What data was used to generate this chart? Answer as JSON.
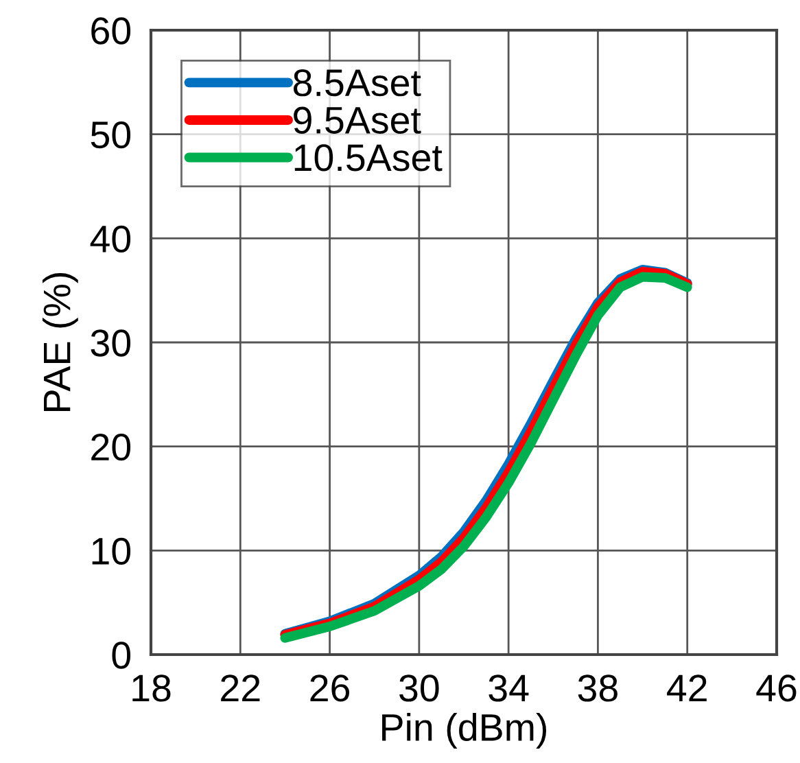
{
  "chart_data": {
    "type": "line",
    "xlabel": "Pin (dBm)",
    "ylabel": "PAE (%)",
    "x": [
      24,
      26,
      28,
      30,
      31,
      32,
      33,
      34,
      35,
      36,
      37,
      38,
      39,
      40,
      41,
      42
    ],
    "series": [
      {
        "name": "8.5Aset",
        "color": "#0070c0",
        "values": [
          2.0,
          3.2,
          4.9,
          7.6,
          9.4,
          11.8,
          14.8,
          18.3,
          22.2,
          26.3,
          30.3,
          33.8,
          36.1,
          37.0,
          36.7,
          35.7
        ]
      },
      {
        "name": "9.5Aset",
        "color": "#ff0000",
        "values": [
          1.9,
          3.0,
          4.6,
          7.2,
          8.9,
          11.2,
          14.1,
          17.5,
          21.4,
          25.6,
          29.7,
          33.4,
          35.8,
          36.8,
          36.6,
          35.6
        ]
      },
      {
        "name": "10.5Aset",
        "color": "#00b050",
        "values": [
          1.6,
          2.7,
          4.2,
          6.6,
          8.2,
          10.4,
          13.2,
          16.5,
          20.3,
          24.5,
          28.7,
          32.6,
          35.3,
          36.3,
          36.2,
          35.3
        ]
      }
    ],
    "xlim": [
      18,
      46
    ],
    "xticks": [
      18,
      22,
      26,
      30,
      34,
      38,
      42,
      46
    ],
    "ylim": [
      0,
      60
    ],
    "yticks": [
      0,
      10,
      20,
      30,
      40,
      50,
      60
    ],
    "grid": true,
    "legend": "top left",
    "marker": "none",
    "line_style": "solid"
  }
}
